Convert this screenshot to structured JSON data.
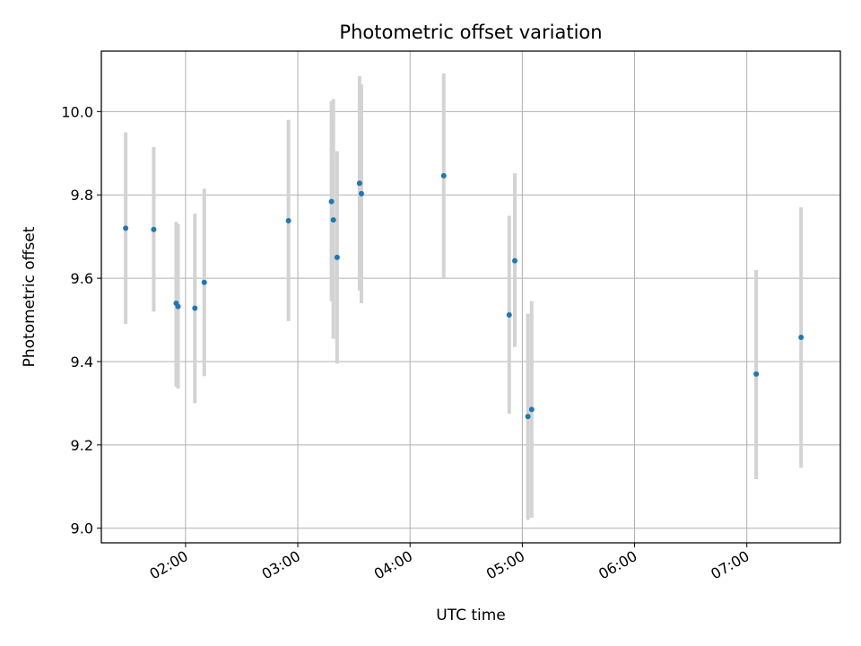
{
  "chart_data": {
    "type": "scatter",
    "title": "Photometric offset variation",
    "xlabel": "UTC time",
    "ylabel": "Photometric offset",
    "xlim": [
      "01:15",
      "07:50"
    ],
    "ylim": [
      8.965,
      10.145
    ],
    "xticks": [
      "02:00",
      "03:00",
      "04:00",
      "05:00",
      "06:00",
      "07:00"
    ],
    "yticks": [
      "9.0",
      "9.2",
      "9.4",
      "9.6",
      "9.8",
      "10.0"
    ],
    "grid": true,
    "colors": {
      "point": "#1f77b4",
      "errorbar": "#d3d3d3",
      "grid": "#b0b0b0"
    },
    "points": [
      {
        "x": "01:28",
        "y": 9.72,
        "ymin": 9.49,
        "ymax": 9.95
      },
      {
        "x": "01:43",
        "y": 9.717,
        "ymin": 9.52,
        "ymax": 9.915
      },
      {
        "x": "01:55",
        "y": 9.54,
        "ymin": 9.34,
        "ymax": 9.735
      },
      {
        "x": "01:56",
        "y": 9.532,
        "ymin": 9.335,
        "ymax": 9.73
      },
      {
        "x": "02:05",
        "y": 9.528,
        "ymin": 9.3,
        "ymax": 9.755
      },
      {
        "x": "02:10",
        "y": 9.59,
        "ymin": 9.365,
        "ymax": 9.815
      },
      {
        "x": "02:55",
        "y": 9.738,
        "ymin": 9.497,
        "ymax": 9.98
      },
      {
        "x": "03:18",
        "y": 9.784,
        "ymin": 9.545,
        "ymax": 10.025
      },
      {
        "x": "03:19",
        "y": 9.74,
        "ymin": 9.455,
        "ymax": 10.03
      },
      {
        "x": "03:21",
        "y": 9.65,
        "ymin": 9.395,
        "ymax": 9.905
      },
      {
        "x": "03:33",
        "y": 9.828,
        "ymin": 9.57,
        "ymax": 10.085
      },
      {
        "x": "03:34",
        "y": 9.803,
        "ymin": 9.54,
        "ymax": 10.065
      },
      {
        "x": "04:18",
        "y": 9.846,
        "ymin": 9.6,
        "ymax": 10.092
      },
      {
        "x": "04:53",
        "y": 9.512,
        "ymin": 9.275,
        "ymax": 9.75
      },
      {
        "x": "04:56",
        "y": 9.642,
        "ymin": 9.435,
        "ymax": 9.852
      },
      {
        "x": "05:03",
        "y": 9.268,
        "ymin": 9.02,
        "ymax": 9.515
      },
      {
        "x": "05:05",
        "y": 9.285,
        "ymin": 9.025,
        "ymax": 9.545
      },
      {
        "x": "07:05",
        "y": 9.37,
        "ymin": 9.118,
        "ymax": 9.62
      },
      {
        "x": "07:29",
        "y": 9.458,
        "ymin": 9.145,
        "ymax": 9.77
      }
    ]
  }
}
